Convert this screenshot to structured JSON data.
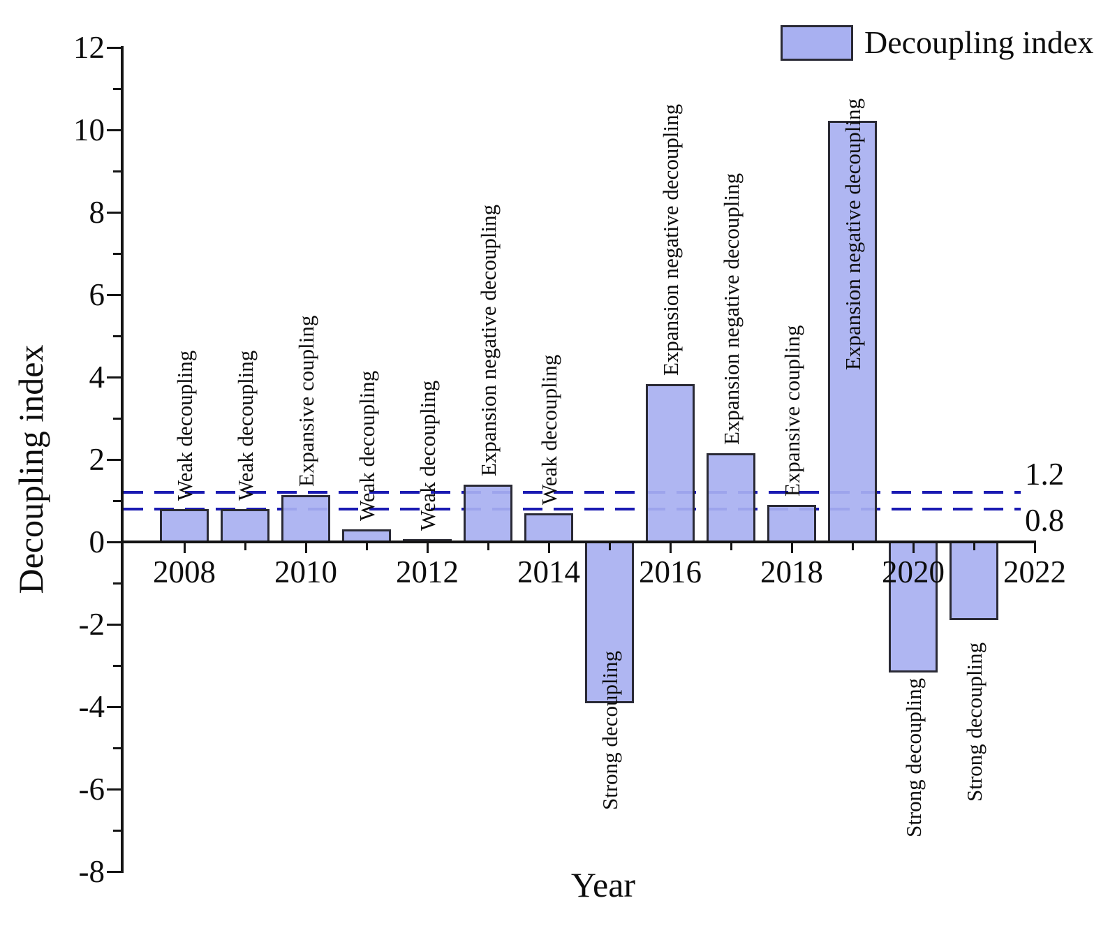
{
  "chart_data": {
    "type": "bar",
    "title": "",
    "xlabel": "Year",
    "ylabel": "Decoupling index",
    "ylim": [
      -8,
      12
    ],
    "xlim": [
      2007,
      2022
    ],
    "yticks": [
      -8,
      -6,
      -4,
      -2,
      0,
      2,
      4,
      6,
      8,
      10,
      12
    ],
    "xticks": [
      2008,
      2010,
      2012,
      2014,
      2016,
      2018,
      2020,
      2022
    ],
    "grid": "off",
    "legend_position": "top-right",
    "categories": [
      2008,
      2009,
      2010,
      2011,
      2012,
      2013,
      2014,
      2015,
      2016,
      2017,
      2018,
      2019,
      2020,
      2021
    ],
    "values": [
      0.8,
      0.8,
      1.13,
      0.3,
      0.07,
      1.39,
      0.7,
      -3.92,
      3.83,
      2.15,
      0.9,
      10.22,
      -3.17,
      -1.9
    ],
    "bar_labels": [
      "Weak decoupling",
      "Weak decoupling",
      "Expansive coupling",
      "Weak decoupling",
      "Weak decoupling",
      "Expansion negative decoupling",
      "Weak decoupling",
      "Strong decoupling",
      "Expansion negative decoupling",
      "Expansion negative decoupling",
      "Expansive coupling",
      "Expansion negative decoupling",
      "Strong decoupling",
      "Strong decoupling"
    ],
    "legend": [
      {
        "label": "Decoupling index",
        "color": "#a8b0f1"
      }
    ],
    "reference_lines": [
      {
        "value": 1.2,
        "label": "1.2",
        "style": "dashed",
        "color": "#1a1ab2"
      },
      {
        "value": 0.8,
        "label": "0.8",
        "style": "dashed",
        "color": "#1a1ab2"
      }
    ],
    "colors": {
      "bar_fill": "#a8b0f1",
      "bar_border": "#2a2a35",
      "dashed_line": "#1a1ab2",
      "axis": "#141414"
    }
  }
}
